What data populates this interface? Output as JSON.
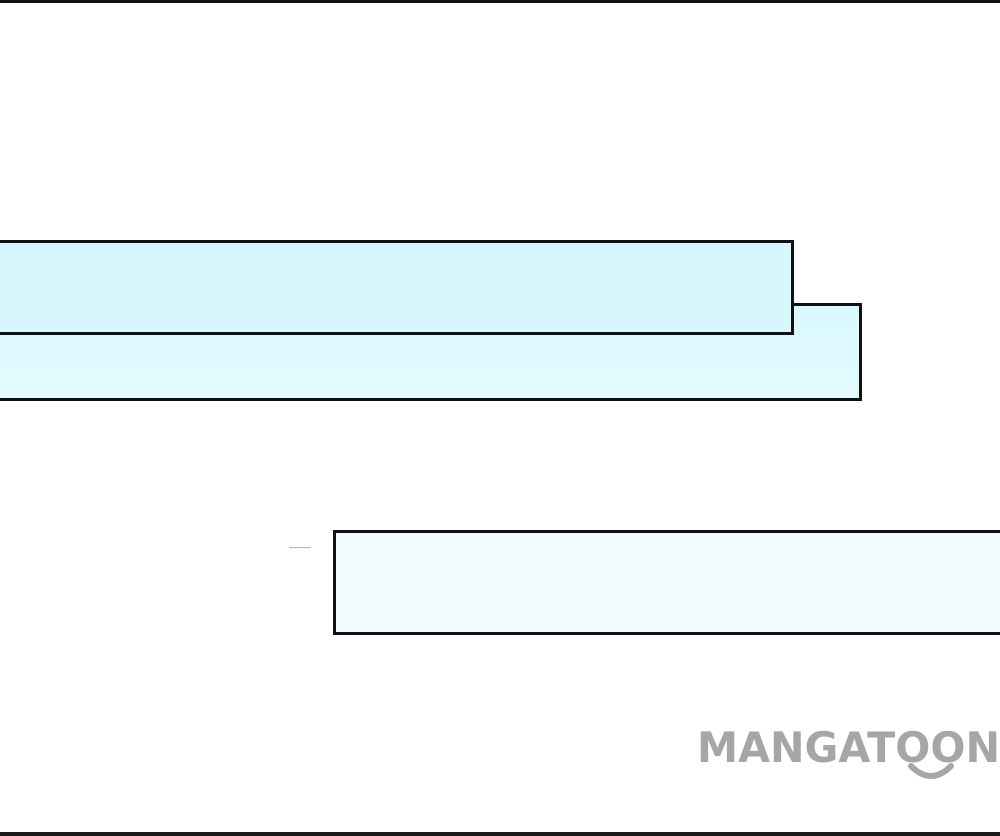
{
  "panel": {
    "background_color": "#ffffff",
    "border_color": "#111111"
  },
  "captions": [
    {
      "id": "caption-1",
      "fill_color": "#d6f7fd",
      "text": ""
    },
    {
      "id": "caption-2",
      "fill_color": "#dff9fe",
      "text": ""
    },
    {
      "id": "caption-3",
      "fill_color": "#f1fcff",
      "text": ""
    }
  ],
  "watermark": {
    "text": "MANGATOON",
    "color": "#a6a6a6"
  }
}
